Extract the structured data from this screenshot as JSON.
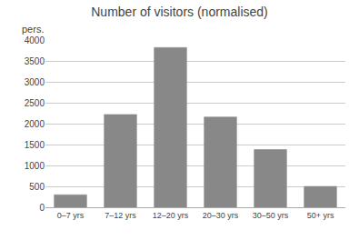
{
  "chart_data": {
    "type": "bar",
    "title": "Number of visitors (normalised)",
    "ylabel": "pers.",
    "categories": [
      "0–7 yrs",
      "7–12 yrs",
      "12–20 yrs",
      "20–30 yrs",
      "30–50 yrs",
      "50+ yrs"
    ],
    "values": [
      300,
      2220,
      3820,
      2160,
      1380,
      500
    ],
    "color": "#888888",
    "ylim": [
      0,
      4000
    ],
    "yticks": [
      0,
      500,
      1000,
      1500,
      2000,
      2500,
      3000,
      3500,
      4000
    ],
    "grid": true
  }
}
